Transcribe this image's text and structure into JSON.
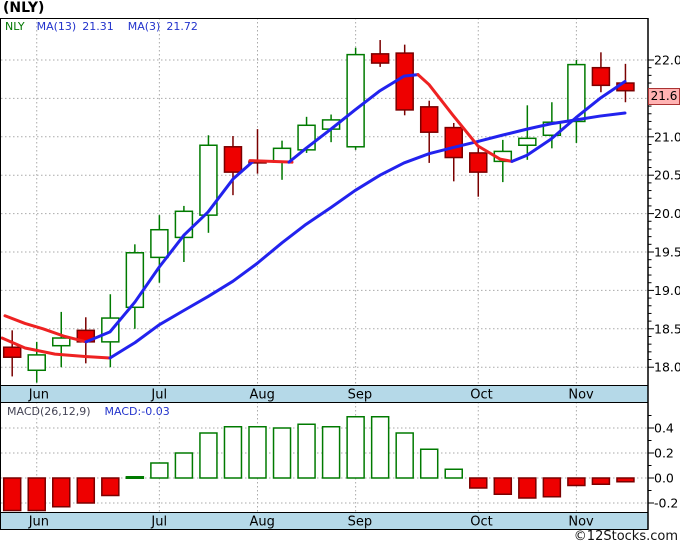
{
  "title": "(NLY)",
  "watermark": "©12Stocks.com",
  "legend": {
    "symbol": "NLY",
    "ma13_label": "MA(13)",
    "ma13_value": "21.31",
    "ma3_label": "MA(3)",
    "ma3_value": "21.72"
  },
  "macd_header": {
    "label": "MACD(26,12,9)",
    "value_label": "MACD:-0.03"
  },
  "price_badge": "21.6",
  "months": [
    {
      "label": "Jun",
      "week": 2
    },
    {
      "label": "Jul",
      "week": 7
    },
    {
      "label": "Aug",
      "week": 11
    },
    {
      "label": "Sep",
      "week": 15
    },
    {
      "label": "Oct",
      "week": 20
    },
    {
      "label": "Nov",
      "week": 24
    }
  ],
  "colors": {
    "up_stroke": "#007a00",
    "down_fill": "#ee0000",
    "down_stroke": "#7a0000",
    "ma_blue": "#2222ee",
    "ma_red": "#ee2222",
    "strip_fill": "#b5d9e8",
    "grid": "#aaaaaa",
    "axis_text": "#000000",
    "frame": "#000000"
  },
  "chart_data": [
    {
      "type": "candlestick",
      "title": "NLY weekly price with MA(13) and MA(3)",
      "ylabel": "Price",
      "ylim": [
        18.0,
        22.0
      ],
      "grid": true,
      "price_axis_labels": [
        {
          "value": 22.0,
          "label": "22.0"
        },
        {
          "value": 21.0,
          "label": "21.0"
        },
        {
          "value": 20.5,
          "label": "20.5"
        },
        {
          "value": 20.0,
          "label": "20.0"
        },
        {
          "value": 19.5,
          "label": "19.5"
        },
        {
          "value": 19.0,
          "label": "19.0"
        },
        {
          "value": 18.5,
          "label": "18.5"
        },
        {
          "value": 18.0,
          "label": "18.0"
        }
      ],
      "current_price": 21.6,
      "candles_columns": [
        "open",
        "high",
        "low",
        "close"
      ],
      "candles": [
        [
          18.26,
          18.48,
          17.88,
          18.13
        ],
        [
          17.96,
          18.33,
          17.8,
          18.16
        ],
        [
          18.28,
          18.72,
          18.0,
          18.38
        ],
        [
          18.48,
          18.65,
          18.05,
          18.33
        ],
        [
          18.33,
          18.95,
          18.0,
          18.64
        ],
        [
          18.78,
          19.6,
          18.5,
          19.49
        ],
        [
          19.43,
          19.98,
          19.1,
          19.79
        ],
        [
          19.69,
          20.1,
          19.37,
          20.03
        ],
        [
          19.98,
          21.02,
          19.75,
          20.89
        ],
        [
          20.87,
          21.01,
          20.24,
          20.54
        ],
        [
          20.68,
          21.1,
          20.52,
          20.66
        ],
        [
          20.67,
          20.95,
          20.44,
          20.85
        ],
        [
          20.83,
          21.26,
          20.79,
          21.15
        ],
        [
          21.1,
          21.29,
          20.93,
          21.22
        ],
        [
          20.87,
          22.16,
          20.83,
          22.07
        ],
        [
          22.08,
          22.26,
          21.91,
          21.96
        ],
        [
          22.09,
          22.2,
          21.28,
          21.35
        ],
        [
          21.39,
          21.47,
          20.66,
          21.06
        ],
        [
          21.12,
          21.18,
          20.42,
          20.73
        ],
        [
          20.79,
          20.87,
          20.22,
          20.54
        ],
        [
          20.68,
          20.96,
          20.41,
          20.81
        ],
        [
          20.89,
          21.41,
          20.7,
          20.98
        ],
        [
          21.02,
          21.45,
          20.85,
          21.19
        ],
        [
          21.2,
          22.0,
          20.92,
          21.94
        ],
        [
          21.9,
          22.1,
          21.58,
          21.67
        ],
        [
          21.7,
          21.95,
          21.45,
          21.6
        ]
      ],
      "ma13": {
        "name": "MA(13)",
        "final_value": 21.31,
        "segments": [
          {
            "color": "red",
            "points": [
              [
                2,
                18.38
              ],
              [
                25,
                18.25
              ],
              [
                55,
                18.17
              ],
              [
                85,
                18.14
              ],
              [
                110,
                18.12
              ]
            ]
          },
          {
            "color": "blue",
            "points": [
              [
                110,
                18.12
              ],
              [
                135,
                18.32
              ],
              [
                159,
                18.55
              ],
              [
                184,
                18.74
              ],
              [
                208,
                18.92
              ],
              [
                233,
                19.12
              ],
              [
                257,
                19.35
              ],
              [
                282,
                19.62
              ],
              [
                306,
                19.86
              ],
              [
                331,
                20.08
              ],
              [
                355,
                20.3
              ],
              [
                380,
                20.5
              ],
              [
                404,
                20.66
              ],
              [
                429,
                20.78
              ],
              [
                453,
                20.86
              ],
              [
                478,
                20.94
              ],
              [
                502,
                21.02
              ],
              [
                527,
                21.1
              ],
              [
                551,
                21.17
              ],
              [
                576,
                21.22
              ],
              [
                600,
                21.27
              ],
              [
                625,
                21.31
              ]
            ]
          }
        ]
      },
      "ma3": {
        "name": "MA(3)",
        "final_value": 21.72,
        "segments": [
          {
            "color": "red",
            "points": [
              [
                5,
                18.67
              ],
              [
                25,
                18.57
              ],
              [
                43,
                18.5
              ],
              [
                65,
                18.4
              ],
              [
                86,
                18.33
              ]
            ]
          },
          {
            "color": "blue",
            "points": [
              [
                86,
                18.33
              ],
              [
                110,
                18.46
              ],
              [
                135,
                18.85
              ],
              [
                159,
                19.3
              ],
              [
                184,
                19.72
              ],
              [
                208,
                20.02
              ],
              [
                233,
                20.45
              ],
              [
                253,
                20.68
              ]
            ]
          },
          {
            "color": "red",
            "points": [
              [
                250,
                20.69
              ],
              [
                292,
                20.67
              ]
            ]
          },
          {
            "color": "blue",
            "points": [
              [
                289,
                20.67
              ],
              [
                306,
                20.85
              ],
              [
                331,
                21.1
              ],
              [
                355,
                21.35
              ],
              [
                380,
                21.6
              ],
              [
                404,
                21.79
              ],
              [
                418,
                21.81
              ]
            ]
          },
          {
            "color": "red",
            "points": [
              [
                418,
                21.81
              ],
              [
                429,
                21.68
              ],
              [
                453,
                21.28
              ],
              [
                478,
                20.88
              ],
              [
                500,
                20.71
              ],
              [
                512,
                20.68
              ]
            ]
          },
          {
            "color": "blue",
            "points": [
              [
                512,
                20.68
              ],
              [
                527,
                20.76
              ],
              [
                551,
                20.97
              ],
              [
                576,
                21.25
              ],
              [
                600,
                21.5
              ],
              [
                625,
                21.72
              ]
            ]
          }
        ]
      }
    },
    {
      "type": "bar",
      "title": "MACD(26,12,9) histogram",
      "ylim": [
        -0.27,
        0.6
      ],
      "macd_axis_labels": [
        {
          "value": 0.4,
          "label": "0.4"
        },
        {
          "value": 0.2,
          "label": "0.2"
        },
        {
          "value": 0.0,
          "label": "0.0"
        },
        {
          "value": -0.2,
          "label": "-0.2"
        }
      ],
      "values": [
        -0.29,
        -0.31,
        -0.23,
        -0.2,
        -0.14,
        0.01,
        0.12,
        0.2,
        0.36,
        0.41,
        0.41,
        0.4,
        0.43,
        0.41,
        0.49,
        0.49,
        0.36,
        0.23,
        0.07,
        -0.08,
        -0.13,
        -0.16,
        -0.15,
        -0.06,
        -0.05,
        -0.03
      ],
      "last_value": -0.03
    }
  ]
}
